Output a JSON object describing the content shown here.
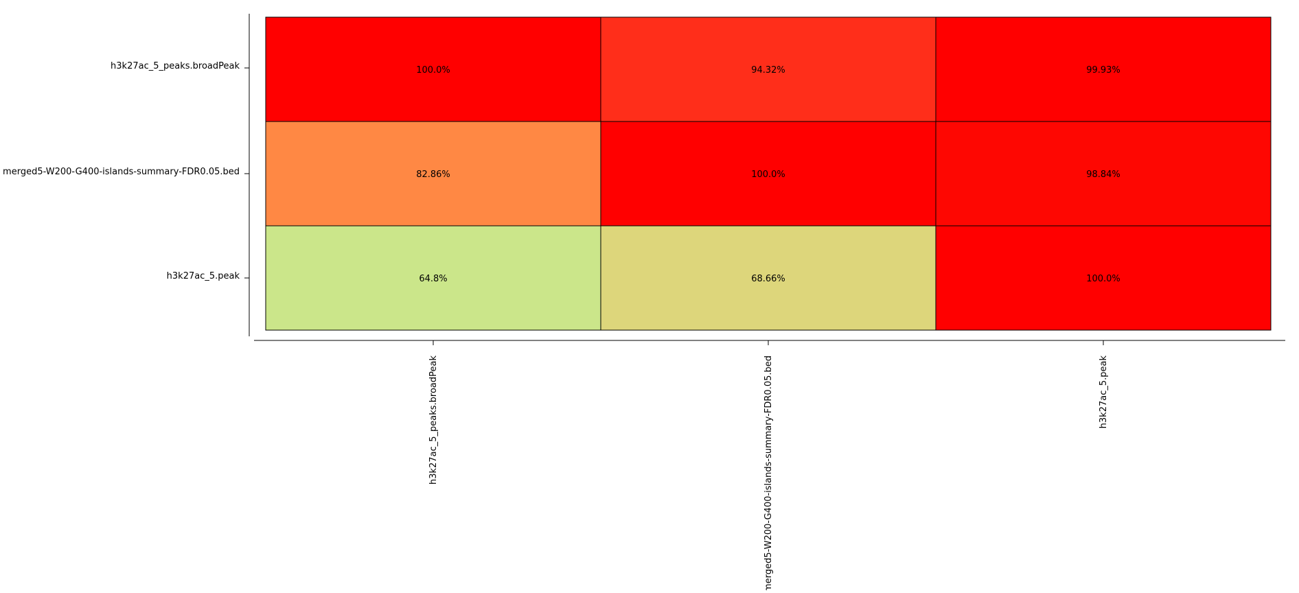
{
  "chart_data": {
    "type": "heatmap",
    "title": "",
    "xlabel": "",
    "ylabel": "",
    "rows": [
      "h3k27ac_5_peaks.broadPeak",
      "merged5-W200-G400-islands-summary-FDR0.05.bed",
      "h3k27ac_5.peak"
    ],
    "columns": [
      "h3k27ac_5_peaks.broadPeak",
      "merged5-W200-G400-islands-summary-FDR0.05.bed",
      "h3k27ac_5.peak"
    ],
    "values": [
      [
        100.0,
        94.32,
        99.93
      ],
      [
        82.86,
        100.0,
        98.84
      ],
      [
        64.8,
        68.66,
        100.0
      ]
    ],
    "labels": [
      [
        "100.0%",
        "94.32%",
        "99.93%"
      ],
      [
        "82.86%",
        "100.0%",
        "98.84%"
      ],
      [
        "64.8%",
        "68.66%",
        "100.0%"
      ]
    ],
    "colors": [
      [
        "#ff0000",
        "#ff2e1a",
        "#ff0000"
      ],
      [
        "#ff8844",
        "#ff0000",
        "#fe0702"
      ],
      [
        "#cbe68a",
        "#ddd67b",
        "#ff0000"
      ]
    ],
    "grid": true,
    "legend": "none"
  }
}
